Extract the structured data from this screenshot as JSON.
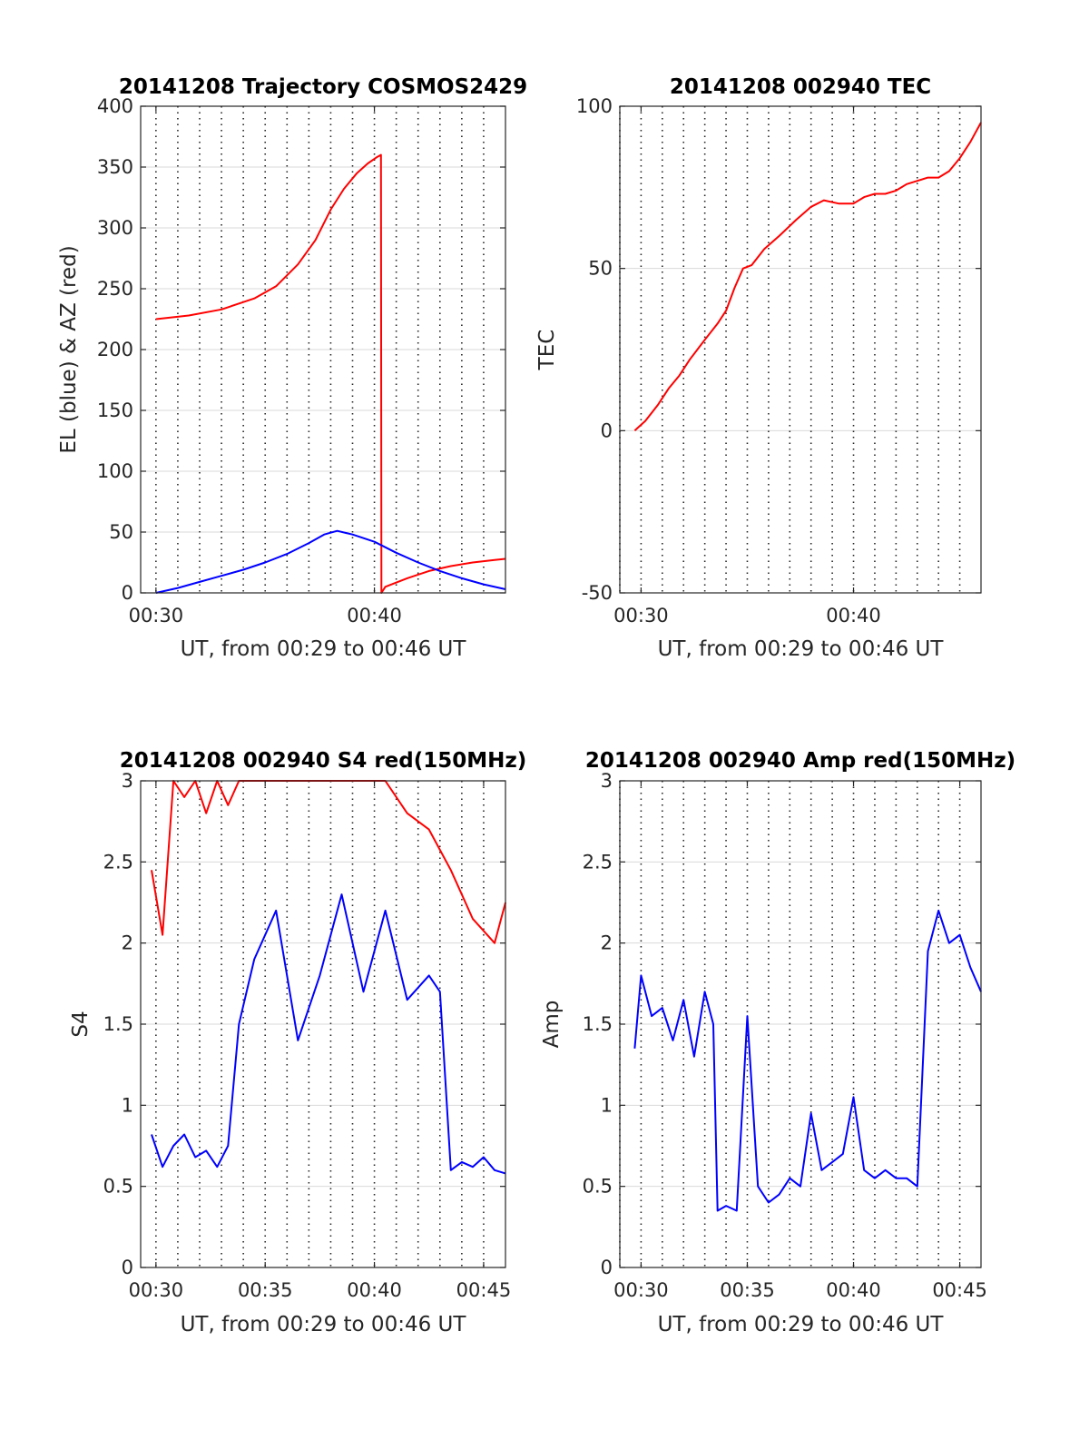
{
  "colors": {
    "red": "#ff0000",
    "blue": "#0000ff",
    "grid": "#d9d9d9",
    "vgrid": "#262626",
    "axis": "#262626"
  },
  "chart_data": [
    {
      "id": "trajectory",
      "type": "line",
      "title": "20141208 Trajectory COSMOS2429",
      "xlabel": "UT, from 00:29 to 00:46 UT",
      "ylabel": "EL (blue) & AZ (red)",
      "xlim": [
        29.3,
        46.0
      ],
      "ylim": [
        0,
        400
      ],
      "xticks": [
        30,
        40
      ],
      "xtick_labels": [
        "00:30",
        "00:40"
      ],
      "yticks": [
        0,
        50,
        100,
        150,
        200,
        250,
        300,
        350,
        400
      ],
      "ytick_labels": [
        "0",
        "50",
        "100",
        "150",
        "200",
        "250",
        "300",
        "350",
        "400"
      ],
      "grid": true,
      "vgrid_dotted_every_min": 1,
      "series": [
        {
          "color": "red",
          "x": [
            30.0,
            31.5,
            33.0,
            34.5,
            35.5,
            36.5,
            37.3,
            38.0,
            38.6,
            39.2,
            39.7,
            40.1,
            40.3,
            40.32,
            40.5,
            41.5,
            42.5,
            43.5,
            44.5,
            45.5,
            46.0
          ],
          "y": [
            225,
            228,
            233,
            242,
            252,
            270,
            290,
            315,
            332,
            345,
            353,
            358,
            360,
            0,
            5,
            12,
            18,
            22,
            25,
            27,
            28
          ]
        },
        {
          "color": "blue",
          "x": [
            30.0,
            31.0,
            32.0,
            33.0,
            34.0,
            35.0,
            36.0,
            37.0,
            37.7,
            38.3,
            39.0,
            40.0,
            41.0,
            42.0,
            43.0,
            44.0,
            45.0,
            46.0
          ],
          "y": [
            0,
            4,
            9,
            14,
            19,
            25,
            32,
            41,
            48,
            51,
            48,
            42,
            33,
            25,
            18,
            12,
            7,
            3
          ]
        }
      ]
    },
    {
      "id": "tec",
      "type": "line",
      "title": "20141208 002940 TEC",
      "xlabel": "UT, from 00:29 to 00:46 UT",
      "ylabel": "TEC",
      "xlim": [
        29.0,
        46.0
      ],
      "ylim": [
        -50,
        100
      ],
      "xticks": [
        30,
        40
      ],
      "xtick_labels": [
        "00:30",
        "00:40"
      ],
      "yticks": [
        -50,
        0,
        50,
        100
      ],
      "ytick_labels": [
        "-50",
        "0",
        "50",
        "100"
      ],
      "grid": true,
      "vgrid_dotted_every_min": 1,
      "series": [
        {
          "color": "red",
          "x": [
            29.7,
            30.2,
            30.8,
            31.3,
            31.8,
            32.3,
            33.0,
            33.6,
            34.0,
            34.4,
            34.8,
            35.2,
            35.8,
            36.5,
            37.3,
            38.0,
            38.6,
            39.3,
            40.0,
            40.5,
            41.0,
            41.5,
            42.0,
            42.5,
            43.0,
            43.5,
            44.0,
            44.5,
            45.0,
            45.5,
            46.0
          ],
          "y": [
            0,
            3,
            8,
            13,
            17,
            22,
            28,
            33,
            37,
            44,
            50,
            51,
            56,
            60,
            65,
            69,
            71,
            70,
            70,
            72,
            73,
            73,
            74,
            76,
            77,
            78,
            78,
            80,
            84,
            89,
            95
          ]
        }
      ]
    },
    {
      "id": "s4",
      "type": "line",
      "title": "20141208 002940 S4 red(150MHz)",
      "xlabel": "UT, from 00:29 to 00:46 UT",
      "ylabel": "S4",
      "xlim": [
        29.3,
        46.0
      ],
      "ylim": [
        0,
        3
      ],
      "xticks": [
        30,
        35,
        40,
        45
      ],
      "xtick_labels": [
        "00:30",
        "00:35",
        "00:40",
        "00:45"
      ],
      "yticks": [
        0,
        0.5,
        1,
        1.5,
        2,
        2.5,
        3
      ],
      "ytick_labels": [
        "0",
        "0.5",
        "1",
        "1.5",
        "2",
        "2.5",
        "3"
      ],
      "grid": true,
      "vgrid_dotted_every_min": 1,
      "series": [
        {
          "color": "red",
          "x": [
            29.8,
            30.3,
            30.8,
            31.3,
            31.8,
            32.3,
            32.8,
            33.3,
            33.8,
            34.5,
            35.5,
            36.5,
            37.5,
            38.5,
            39.5,
            40.5,
            41.5,
            42.5,
            43.5,
            44.5,
            45.5,
            46.0
          ],
          "y": [
            2.45,
            2.05,
            3.0,
            2.9,
            3.0,
            2.8,
            3.0,
            2.85,
            3.0,
            3.0,
            3.0,
            3.0,
            3.0,
            3.0,
            3.0,
            3.0,
            2.8,
            2.7,
            2.45,
            2.15,
            2.0,
            2.25
          ]
        },
        {
          "color": "blue",
          "x": [
            29.8,
            30.3,
            30.8,
            31.3,
            31.8,
            32.3,
            32.8,
            33.3,
            33.8,
            34.5,
            35.5,
            36.5,
            37.5,
            38.5,
            39.5,
            40.5,
            41.5,
            42.5,
            43.0,
            43.5,
            44.0,
            44.5,
            45.0,
            45.5,
            46.0
          ],
          "y": [
            0.82,
            0.62,
            0.75,
            0.82,
            0.68,
            0.72,
            0.62,
            0.75,
            1.5,
            1.9,
            2.2,
            1.4,
            1.8,
            2.3,
            1.7,
            2.2,
            1.65,
            1.8,
            1.7,
            0.6,
            0.65,
            0.62,
            0.68,
            0.6,
            0.58
          ]
        }
      ]
    },
    {
      "id": "amp",
      "type": "line",
      "title": "20141208 002940 Amp red(150MHz)",
      "xlabel": "UT, from 00:29 to 00:46 UT",
      "ylabel": "Amp",
      "xlim": [
        29.0,
        46.0
      ],
      "ylim": [
        0,
        3
      ],
      "xticks": [
        30,
        35,
        40,
        45
      ],
      "xtick_labels": [
        "00:30",
        "00:35",
        "00:40",
        "00:45"
      ],
      "yticks": [
        0,
        0.5,
        1,
        1.5,
        2,
        2.5,
        3
      ],
      "ytick_labels": [
        "0",
        "0.5",
        "1",
        "1.5",
        "2",
        "2.5",
        "3"
      ],
      "grid": true,
      "vgrid_dotted_every_min": 1,
      "series": [
        {
          "color": "blue",
          "x": [
            29.7,
            30.0,
            30.5,
            31.0,
            31.5,
            32.0,
            32.5,
            33.0,
            33.4,
            33.6,
            34.0,
            34.5,
            35.0,
            35.5,
            36.0,
            36.5,
            37.0,
            37.5,
            38.0,
            38.5,
            39.0,
            39.5,
            40.0,
            40.5,
            41.0,
            41.5,
            42.0,
            42.5,
            43.0,
            43.5,
            44.0,
            44.5,
            45.0,
            45.5,
            46.0
          ],
          "y": [
            1.35,
            1.8,
            1.55,
            1.6,
            1.4,
            1.65,
            1.3,
            1.7,
            1.5,
            0.35,
            0.38,
            0.35,
            1.55,
            0.5,
            0.4,
            0.45,
            0.55,
            0.5,
            0.95,
            0.6,
            0.65,
            0.7,
            1.05,
            0.6,
            0.55,
            0.6,
            0.55,
            0.55,
            0.5,
            1.95,
            2.2,
            2.0,
            2.05,
            1.85,
            1.7
          ]
        }
      ]
    }
  ]
}
